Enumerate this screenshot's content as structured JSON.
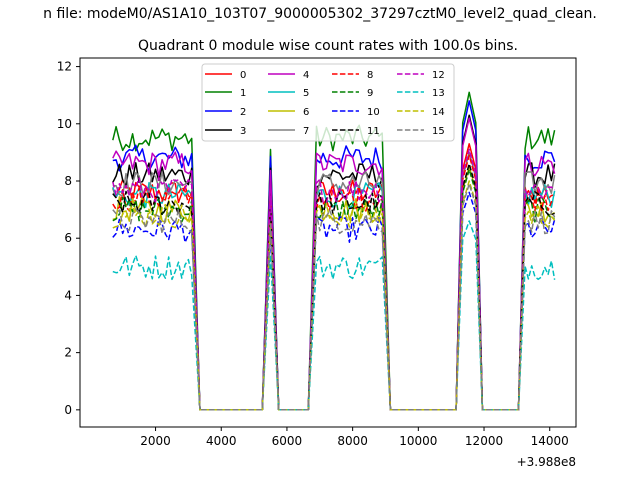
{
  "figure": {
    "suptitle": "n file: modeM0/AS1A10_103T07_9000005302_37297cztM0_level2_quad_clean.",
    "offset_label": "+3.988e8"
  },
  "chart_data": {
    "type": "line",
    "title": "Quadrant 0 module wise count rates with 100.0s bins.",
    "xlabel": "",
    "ylabel": "",
    "x_offset": 398800000,
    "xlim": [
      -300,
      14800
    ],
    "ylim": [
      -0.6,
      12.3
    ],
    "xticks": [
      2000,
      4000,
      6000,
      8000,
      10000,
      12000,
      14000
    ],
    "xtick_labels": [
      "2000",
      "4000",
      "6000",
      "8000",
      "10000",
      "12000",
      "14000"
    ],
    "yticks": [
      0,
      2,
      4,
      6,
      8,
      10,
      12
    ],
    "ytick_labels": [
      "0",
      "2",
      "4",
      "6",
      "8",
      "10",
      "12"
    ],
    "grid": false,
    "legend_position": "top-center",
    "segments": [
      {
        "on": true,
        "start": 700,
        "end": 3150
      },
      {
        "on": false,
        "start": 3350,
        "end": 5300
      },
      {
        "on": true,
        "start": 5500,
        "end": 5550
      },
      {
        "on": false,
        "start": 5750,
        "end": 6700
      },
      {
        "on": true,
        "start": 6900,
        "end": 8950
      },
      {
        "on": false,
        "start": 9150,
        "end": 11150
      },
      {
        "on": true,
        "start": 11350,
        "end": 11750
      },
      {
        "on": false,
        "start": 11950,
        "end": 13050
      },
      {
        "on": true,
        "start": 13250,
        "end": 14150
      }
    ],
    "series": [
      {
        "name": "0",
        "color": "#ff0000",
        "dash": "solid",
        "level": 7.6,
        "peak": 9.3
      },
      {
        "name": "1",
        "color": "#008000",
        "dash": "solid",
        "level": 9.5,
        "peak": 11.1
      },
      {
        "name": "2",
        "color": "#0000ff",
        "dash": "solid",
        "level": 8.8,
        "peak": 10.8
      },
      {
        "name": "3",
        "color": "#000000",
        "dash": "solid",
        "level": 8.2,
        "peak": 10.3
      },
      {
        "name": "4",
        "color": "#bf00bf",
        "dash": "solid",
        "level": 8.6,
        "peak": 10.2
      },
      {
        "name": "5",
        "color": "#00bfbf",
        "dash": "solid",
        "level": 7.5,
        "peak": 9.0
      },
      {
        "name": "6",
        "color": "#bfbf00",
        "dash": "solid",
        "level": 7.0,
        "peak": 8.5
      },
      {
        "name": "7",
        "color": "#808080",
        "dash": "solid",
        "level": 7.9,
        "peak": 9.0
      },
      {
        "name": "8",
        "color": "#ff0000",
        "dash": "dashed",
        "level": 7.4,
        "peak": 8.9
      },
      {
        "name": "9",
        "color": "#008000",
        "dash": "dashed",
        "level": 7.0,
        "peak": 8.4
      },
      {
        "name": "10",
        "color": "#0000ff",
        "dash": "dashed",
        "level": 6.3,
        "peak": 7.6
      },
      {
        "name": "11",
        "color": "#000000",
        "dash": "dashed",
        "level": 7.2,
        "peak": 8.6
      },
      {
        "name": "12",
        "color": "#bf00bf",
        "dash": "dashed",
        "level": 7.7,
        "peak": 9.1
      },
      {
        "name": "13",
        "color": "#00bfbf",
        "dash": "dashed",
        "level": 5.0,
        "peak": 6.6
      },
      {
        "name": "14",
        "color": "#bfbf00",
        "dash": "dashed",
        "level": 6.8,
        "peak": 8.0
      },
      {
        "name": "15",
        "color": "#808080",
        "dash": "dashed",
        "level": 6.6,
        "peak": 7.9
      }
    ]
  }
}
